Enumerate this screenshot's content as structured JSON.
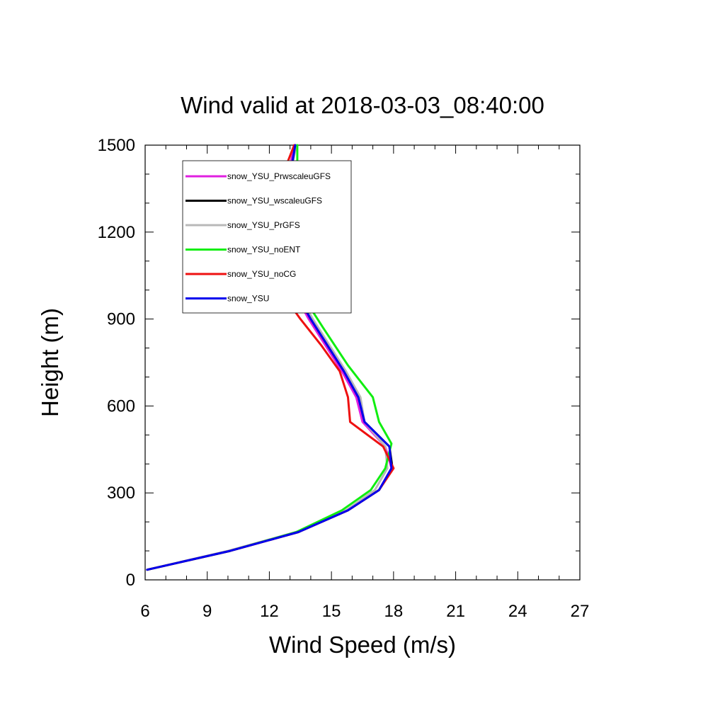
{
  "chart_data": {
    "type": "line",
    "title": "Wind valid at 2018-03-03_08:40:00",
    "xlabel": "Wind Speed (m/s)",
    "ylabel": "Height (m)",
    "xlim": [
      6,
      27
    ],
    "ylim": [
      0,
      1500
    ],
    "xticks": [
      6,
      9,
      12,
      15,
      18,
      21,
      24,
      27
    ],
    "yticks": [
      0,
      300,
      600,
      900,
      1200,
      1500
    ],
    "legend_position": "top-left",
    "series": [
      {
        "name": "snow_YSU_PrwscaleuGFS",
        "color": "#e020e0",
        "points": [
          [
            6.1,
            35
          ],
          [
            10.1,
            100
          ],
          [
            13.4,
            165
          ],
          [
            15.8,
            240
          ],
          [
            17.3,
            310
          ],
          [
            17.9,
            385
          ],
          [
            17.6,
            460
          ],
          [
            16.5,
            545
          ],
          [
            16.2,
            630
          ],
          [
            15.5,
            720
          ],
          [
            14.7,
            810
          ],
          [
            13.9,
            900
          ],
          [
            13.2,
            990
          ],
          [
            12.6,
            1090
          ],
          [
            12.3,
            1200
          ],
          [
            12.5,
            1300
          ],
          [
            12.9,
            1390
          ],
          [
            13.2,
            1500
          ]
        ]
      },
      {
        "name": "snow_YSU_wscaleuGFS",
        "color": "#000000",
        "points": [
          [
            6.1,
            35
          ],
          [
            10.1,
            100
          ],
          [
            13.4,
            165
          ],
          [
            15.8,
            240
          ],
          [
            17.3,
            310
          ],
          [
            17.95,
            385
          ],
          [
            17.8,
            460
          ],
          [
            16.6,
            545
          ],
          [
            16.3,
            630
          ],
          [
            15.6,
            720
          ],
          [
            14.8,
            810
          ],
          [
            14.0,
            900
          ],
          [
            13.3,
            990
          ],
          [
            12.7,
            1090
          ],
          [
            12.35,
            1200
          ],
          [
            12.6,
            1300
          ],
          [
            13.0,
            1390
          ],
          [
            13.25,
            1500
          ]
        ]
      },
      {
        "name": "snow_YSU_PrGFS",
        "color": "#b8b8b8",
        "points": [
          [
            6.1,
            35
          ],
          [
            10.0,
            100
          ],
          [
            13.3,
            165
          ],
          [
            15.7,
            240
          ],
          [
            17.1,
            310
          ],
          [
            17.7,
            385
          ],
          [
            17.6,
            460
          ],
          [
            16.6,
            545
          ],
          [
            16.4,
            630
          ],
          [
            15.7,
            720
          ],
          [
            14.9,
            810
          ],
          [
            14.1,
            900
          ],
          [
            13.4,
            990
          ],
          [
            12.8,
            1090
          ],
          [
            12.4,
            1200
          ],
          [
            12.6,
            1300
          ],
          [
            13.0,
            1390
          ],
          [
            13.3,
            1500
          ]
        ]
      },
      {
        "name": "snow_YSU_noENT",
        "color": "#10ee10",
        "points": [
          [
            6.1,
            35
          ],
          [
            10.1,
            100
          ],
          [
            13.3,
            165
          ],
          [
            15.5,
            240
          ],
          [
            16.9,
            310
          ],
          [
            17.6,
            385
          ],
          [
            17.9,
            470
          ],
          [
            17.3,
            545
          ],
          [
            17.0,
            630
          ],
          [
            15.8,
            740
          ],
          [
            14.6,
            870
          ],
          [
            13.7,
            970
          ],
          [
            13.1,
            1070
          ],
          [
            12.9,
            1170
          ],
          [
            13.0,
            1260
          ],
          [
            13.35,
            1340
          ],
          [
            13.35,
            1500
          ]
        ]
      },
      {
        "name": "snow_YSU_noCG",
        "color": "#ee1010",
        "points": [
          [
            6.1,
            35
          ],
          [
            10.1,
            100
          ],
          [
            13.4,
            165
          ],
          [
            15.8,
            240
          ],
          [
            17.3,
            310
          ],
          [
            18.0,
            385
          ],
          [
            17.5,
            460
          ],
          [
            15.9,
            545
          ],
          [
            15.8,
            630
          ],
          [
            15.4,
            720
          ],
          [
            14.5,
            810
          ],
          [
            13.5,
            900
          ],
          [
            12.6,
            990
          ],
          [
            12.0,
            1090
          ],
          [
            11.7,
            1200
          ],
          [
            11.9,
            1300
          ],
          [
            12.6,
            1390
          ],
          [
            13.2,
            1500
          ]
        ]
      },
      {
        "name": "snow_YSU",
        "color": "#0000ee",
        "points": [
          [
            6.1,
            35
          ],
          [
            10.1,
            100
          ],
          [
            13.4,
            165
          ],
          [
            15.8,
            240
          ],
          [
            17.3,
            310
          ],
          [
            17.9,
            385
          ],
          [
            17.8,
            460
          ],
          [
            16.6,
            545
          ],
          [
            16.3,
            630
          ],
          [
            15.6,
            720
          ],
          [
            14.8,
            810
          ],
          [
            14.0,
            900
          ],
          [
            13.3,
            990
          ],
          [
            12.7,
            1090
          ],
          [
            12.35,
            1200
          ],
          [
            12.6,
            1300
          ],
          [
            13.0,
            1390
          ],
          [
            13.25,
            1500
          ]
        ]
      }
    ]
  }
}
